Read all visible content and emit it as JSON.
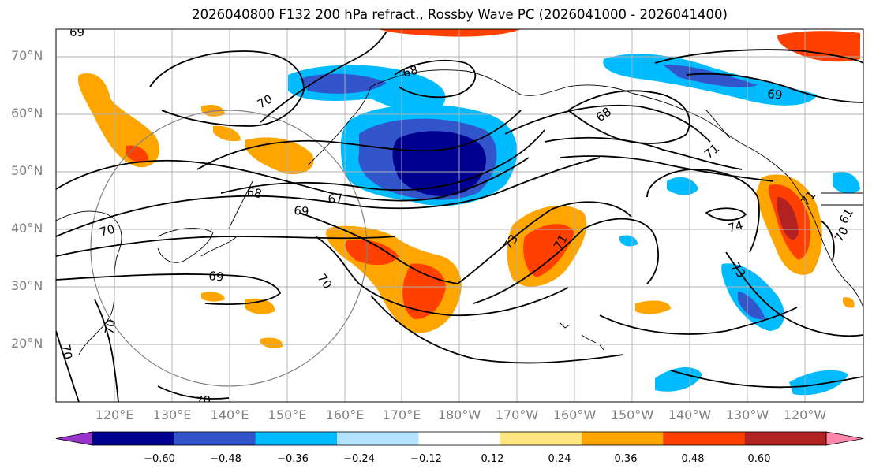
{
  "title": "2026040800 F132 200 hPa refract., Rossby Wave PC (2026041000 - 2026041400)",
  "lat_labels": [
    "70°N",
    "60°N",
    "50°N",
    "40°N",
    "30°N",
    "20°N"
  ],
  "lon_labels": [
    "120°E",
    "130°E",
    "140°E",
    "150°E",
    "160°E",
    "170°E",
    "180°W",
    "170°W",
    "160°W",
    "150°W",
    "140°W",
    "130°W",
    "120°W"
  ],
  "contour_labels": [
    "69",
    "70",
    "68",
    "68",
    "70",
    "69",
    "71",
    "68",
    "67",
    "69",
    "71",
    "61",
    "70",
    "74",
    "70",
    "73",
    "71",
    "69",
    "73",
    "70",
    "70",
    "70"
  ],
  "colorbar": {
    "ticks": [
      "−0.60",
      "−0.48",
      "−0.36",
      "−0.24",
      "−0.12",
      "0.12",
      "0.24",
      "0.36",
      "0.48",
      "0.60"
    ],
    "colors": [
      "#9933cc",
      "#000090",
      "#3355cc",
      "#00bbff",
      "#b3e3ff",
      "#ffffff",
      "#ffe680",
      "#ffa500",
      "#ff4000",
      "#b22222",
      "#ff88aa"
    ]
  },
  "shading_colors": {
    "strong_negative": "#000090",
    "moderate_negative": "#3355cc",
    "weak_negative": "#00bbff",
    "weak_positive": "#ffa500",
    "moderate_positive": "#ff4000",
    "strong_positive": "#b22222"
  }
}
